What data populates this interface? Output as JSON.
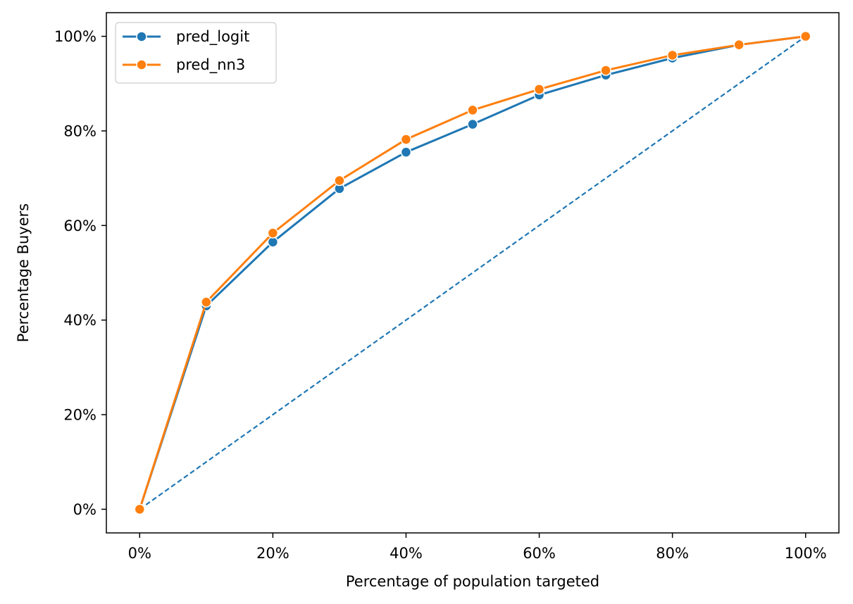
{
  "chart_data": {
    "type": "line",
    "title": "",
    "xlabel": "Percentage of population targeted",
    "ylabel": "Percentage Buyers",
    "xlim": [
      -0.05,
      1.05
    ],
    "ylim": [
      -0.05,
      1.05
    ],
    "x_ticks": [
      0,
      0.2,
      0.4,
      0.6,
      0.8,
      1.0
    ],
    "x_tick_labels": [
      "0%",
      "20%",
      "40%",
      "60%",
      "80%",
      "100%"
    ],
    "y_ticks": [
      0,
      0.2,
      0.4,
      0.6,
      0.8,
      1.0
    ],
    "y_tick_labels": [
      "0%",
      "20%",
      "40%",
      "60%",
      "80%",
      "100%"
    ],
    "grid": false,
    "legend_position": "top-left",
    "series": [
      {
        "name": "pred_logit",
        "color": "#1f77b4",
        "marker": "circle",
        "x": [
          0,
          0.1,
          0.2,
          0.3,
          0.4,
          0.5,
          0.6,
          0.7,
          0.8,
          0.9,
          1.0
        ],
        "y": [
          0.0,
          0.43,
          0.565,
          0.678,
          0.755,
          0.814,
          0.876,
          0.918,
          0.954,
          0.982,
          1.0
        ]
      },
      {
        "name": "pred_nn3",
        "color": "#ff7f0e",
        "marker": "circle",
        "x": [
          0,
          0.1,
          0.2,
          0.3,
          0.4,
          0.5,
          0.6,
          0.7,
          0.8,
          0.9,
          1.0
        ],
        "y": [
          0.0,
          0.438,
          0.584,
          0.695,
          0.782,
          0.844,
          0.888,
          0.928,
          0.96,
          0.982,
          1.0
        ]
      }
    ],
    "reference_line": {
      "style": "dashed",
      "color": "#1f77b4",
      "x": [
        0,
        1.0
      ],
      "y": [
        0,
        1.0
      ]
    }
  }
}
